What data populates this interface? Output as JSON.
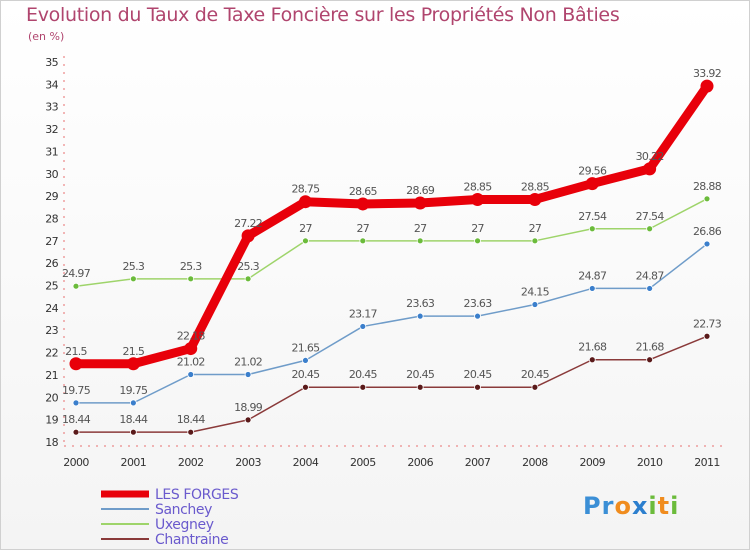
{
  "title": "Evolution du Taux de Taxe Foncière sur les Propriétés Non Bâties",
  "unit": "(en %)",
  "logo": {
    "letters": [
      "P",
      "r",
      "o",
      "x",
      "i",
      "t",
      "i"
    ],
    "colors": [
      "#3b8fd6",
      "#3b8fd6",
      "#f08c1e",
      "#2c7fce",
      "#6bbb3b",
      "#f08c1e",
      "#6bbb3b"
    ]
  },
  "chart_data": {
    "type": "line",
    "title": "Evolution du Taux de Taxe Foncière sur les Propriétés Non Bâties",
    "ylabel": "(en %)",
    "x": [
      "2000",
      "2001",
      "2002",
      "2003",
      "2004",
      "2005",
      "2006",
      "2007",
      "2008",
      "2009",
      "2010",
      "2011"
    ],
    "ylim": [
      18,
      35
    ],
    "yticks": [
      18,
      19,
      20,
      21,
      22,
      23,
      24,
      25,
      26,
      27,
      28,
      29,
      30,
      31,
      32,
      33,
      34,
      35
    ],
    "grid": false,
    "legend": "bottom-left",
    "series": [
      {
        "name": "LES FORGES",
        "color": "#e8000a",
        "highlight": true,
        "values": [
          21.5,
          21.5,
          22.18,
          27.22,
          28.75,
          28.65,
          28.69,
          28.85,
          28.85,
          29.56,
          30.22,
          33.92
        ],
        "labels": [
          "21.5",
          "21.5",
          "22.18",
          "27.22",
          "28.75",
          "28.65",
          "28.69",
          "28.85",
          "28.85",
          "29.56",
          "30.22",
          "33.92"
        ]
      },
      {
        "name": "Sanchey",
        "color": "#6f9cc9",
        "marker": "#3b7fcc",
        "values": [
          19.75,
          19.75,
          21.02,
          21.02,
          21.65,
          23.17,
          23.63,
          23.63,
          24.15,
          24.87,
          24.87,
          26.86
        ],
        "labels": [
          "19.75",
          "19.75",
          "21.02",
          "21.02",
          "21.65",
          "23.17",
          "23.63",
          "23.63",
          "24.15",
          "24.87",
          "24.87",
          "26.86"
        ]
      },
      {
        "name": "Uxegney",
        "color": "#9ed46a",
        "marker": "#6bbb3b",
        "values": [
          24.97,
          25.3,
          25.3,
          25.3,
          27,
          27,
          27,
          27,
          27,
          27.54,
          27.54,
          28.88
        ],
        "labels": [
          "24.97",
          "25.3",
          "25.3",
          "25.3",
          "27",
          "27",
          "27",
          "27",
          "27",
          "27.54",
          "27.54",
          "28.88"
        ]
      },
      {
        "name": "Chantraine",
        "color": "#8a3a3a",
        "marker": "#5a1a1a",
        "values": [
          18.44,
          18.44,
          18.44,
          18.99,
          20.45,
          20.45,
          20.45,
          20.45,
          20.45,
          21.68,
          21.68,
          22.73
        ],
        "labels": [
          "18.44",
          "18.44",
          "18.44",
          "18.99",
          "20.45",
          "20.45",
          "20.45",
          "20.45",
          "20.45",
          "21.68",
          "21.68",
          "22.73"
        ]
      }
    ]
  }
}
